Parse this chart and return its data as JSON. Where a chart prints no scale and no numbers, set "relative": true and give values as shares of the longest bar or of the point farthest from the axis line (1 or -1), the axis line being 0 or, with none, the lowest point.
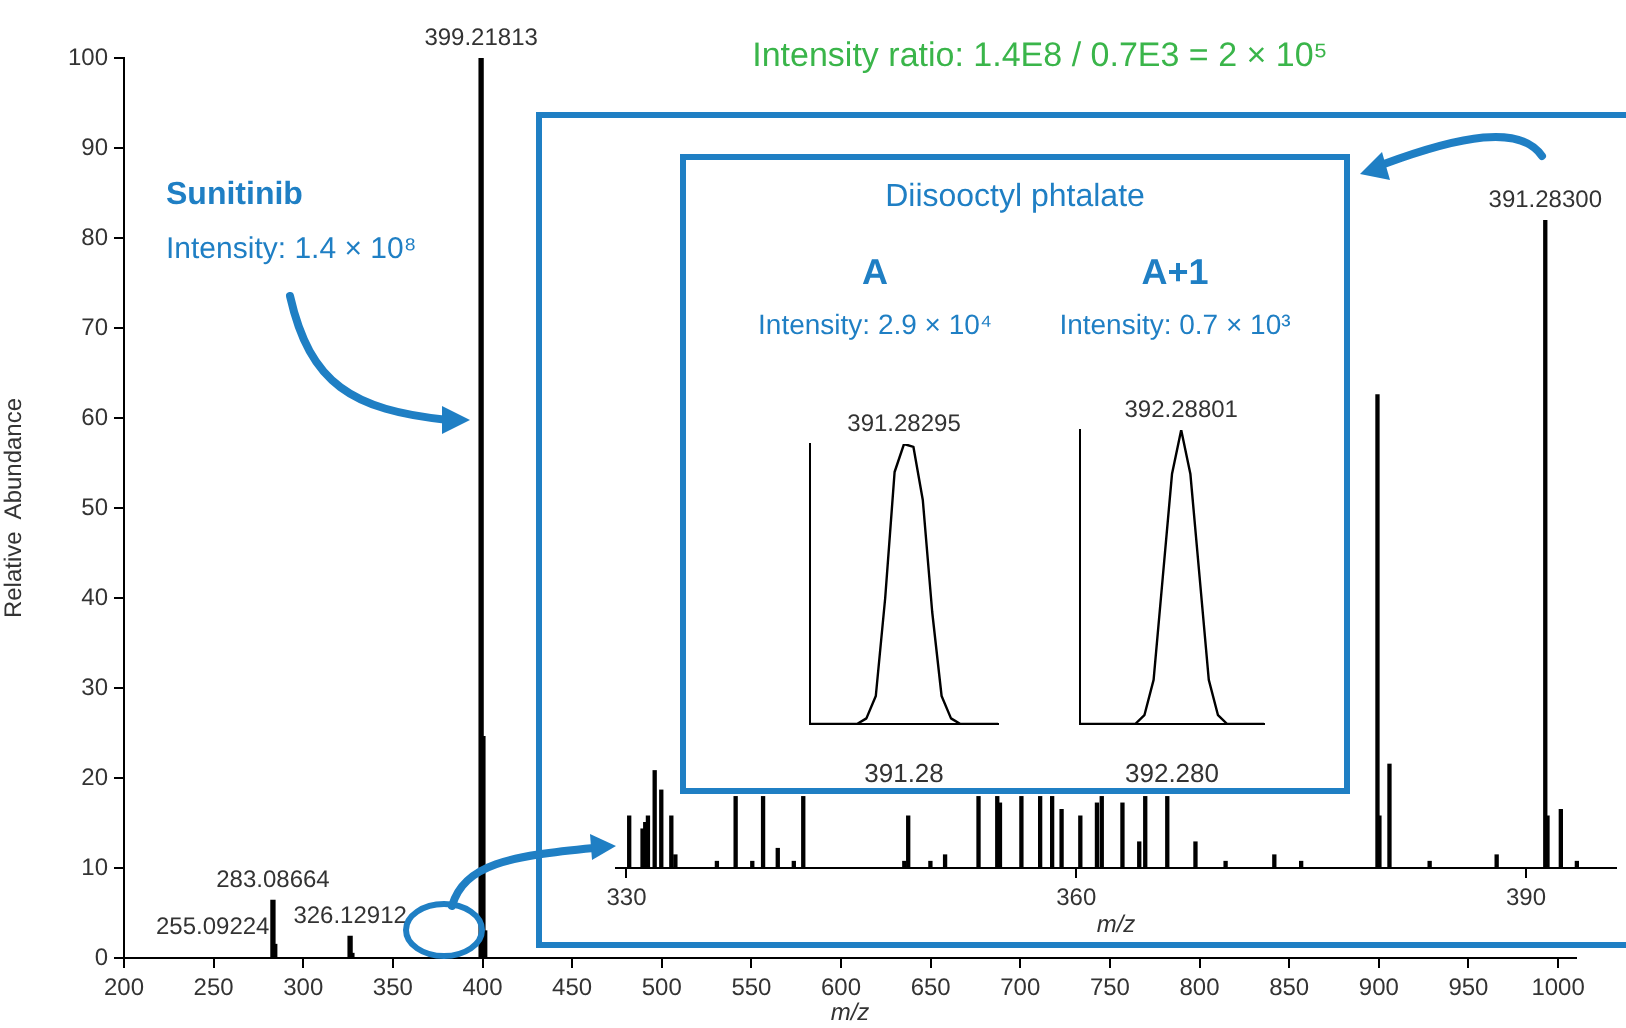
{
  "chart_data": [
    {
      "type": "bar",
      "title": "Intensity ratio: 1.4E8 / 0.7E3 = 2 × 10⁵",
      "xlabel": "m/z",
      "ylabel": "Relative  Abundance",
      "color": "#000000",
      "x": [
        283.08664,
        284.09,
        326.12912,
        327.13,
        399.21813,
        400.22,
        401.22
      ],
      "values": [
        6.4,
        1.5,
        2.4,
        0.5,
        100,
        24.6,
        3
      ],
      "xlim": [
        200,
        1010
      ],
      "xticks": [
        200,
        250,
        300,
        350,
        400,
        450,
        500,
        550,
        600,
        650,
        700,
        750,
        800,
        850,
        900,
        950,
        1000
      ],
      "ylim": [
        0,
        100
      ],
      "yticks": [
        0,
        10,
        20,
        30,
        40,
        50,
        60,
        70,
        80,
        90,
        100
      ],
      "grid": false,
      "annotations": [
        {
          "text": "399.21813",
          "x": 399.21813,
          "y": 100
        },
        {
          "text": "283.08664",
          "x": 283.08664,
          "y": 6.4
        },
        {
          "text": "326.12912",
          "x": 326.12912,
          "y": 2.4
        },
        "255.09224",
        "Sunitinib",
        "Intensity: 1.4 × 10⁸"
      ]
    },
    {
      "type": "bar",
      "relative": true,
      "xlabel": "m/z",
      "color": "#000000",
      "tick_labels": "x",
      "grid": false,
      "x": [
        330.18,
        331.07,
        331.25,
        331.43,
        331.88,
        332.32,
        332.99,
        333.26,
        336.03,
        337.28,
        338.39,
        339.11,
        340.09,
        341.16,
        341.79,
        348.53,
        348.79,
        350.27,
        351.25,
        353.48,
        354.73,
        354.91,
        356.34,
        357.59,
        358.39,
        359.02,
        360.27,
        361.38,
        361.7,
        363.08,
        364.2,
        364.6,
        366.07,
        367.95,
        369.96,
        373.21,
        375.0,
        380.09,
        380.22,
        380.89,
        383.57,
        388.04,
        391.283,
        391.43,
        392.32,
        393.39
      ],
      "values": [
        0.08,
        0.06,
        0.07,
        0.08,
        0.15,
        0.12,
        0.08,
        0.02,
        0.01,
        0.11,
        0.01,
        0.11,
        0.03,
        0.01,
        0.11,
        0.01,
        0.08,
        0.01,
        0.02,
        0.11,
        0.11,
        0.1,
        0.11,
        0.11,
        0.11,
        0.09,
        0.08,
        0.1,
        0.11,
        0.1,
        0.04,
        0.11,
        0.11,
        0.04,
        0.01,
        0.02,
        0.01,
        0.73,
        0.08,
        0.16,
        0.01,
        0.02,
        1,
        0.08,
        0.09,
        0.01
      ],
      "xlim": [
        329.3,
        396
      ],
      "xticks": [
        330,
        360,
        390
      ],
      "annotations": [
        {
          "text": "391.28300",
          "x": 391.283,
          "y": 1
        },
        "Diisooctyl phtalate"
      ]
    },
    {
      "type": "line",
      "relative": true,
      "title": "A",
      "subtitle": "Intensity: 2.9 × 10⁴",
      "xlabel": "391.28",
      "color": "#000000",
      "marker": "none",
      "tick_labels": false,
      "grid": false,
      "categories": [
        null,
        null,
        null,
        null,
        null,
        null,
        null,
        null,
        null,
        null,
        null,
        null,
        null,
        null,
        null,
        null,
        null,
        null,
        null,
        null,
        null
      ],
      "values": [
        0,
        0,
        0,
        0,
        0,
        0,
        0.02,
        0.1,
        0.45,
        0.9,
        1,
        0.99,
        0.8,
        0.4,
        0.1,
        0.02,
        0,
        0,
        0,
        0,
        0
      ],
      "annotations": [
        "391.28295"
      ]
    },
    {
      "type": "line",
      "relative": true,
      "title": "A+1",
      "subtitle": "Intensity: 0.7 × 10³",
      "xlabel": "392.280",
      "color": "#000000",
      "marker": "none",
      "tick_labels": false,
      "grid": false,
      "categories": [
        null,
        null,
        null,
        null,
        null,
        null,
        null,
        null,
        null,
        null,
        null,
        null,
        null,
        null,
        null,
        null,
        null,
        null,
        null,
        null,
        null
      ],
      "values": [
        0,
        0,
        0,
        0,
        0,
        0,
        0,
        0.03,
        0.15,
        0.5,
        0.85,
        1,
        0.85,
        0.5,
        0.15,
        0.03,
        0,
        0,
        0,
        0,
        0
      ],
      "annotations": [
        "392.28801"
      ]
    }
  ]
}
